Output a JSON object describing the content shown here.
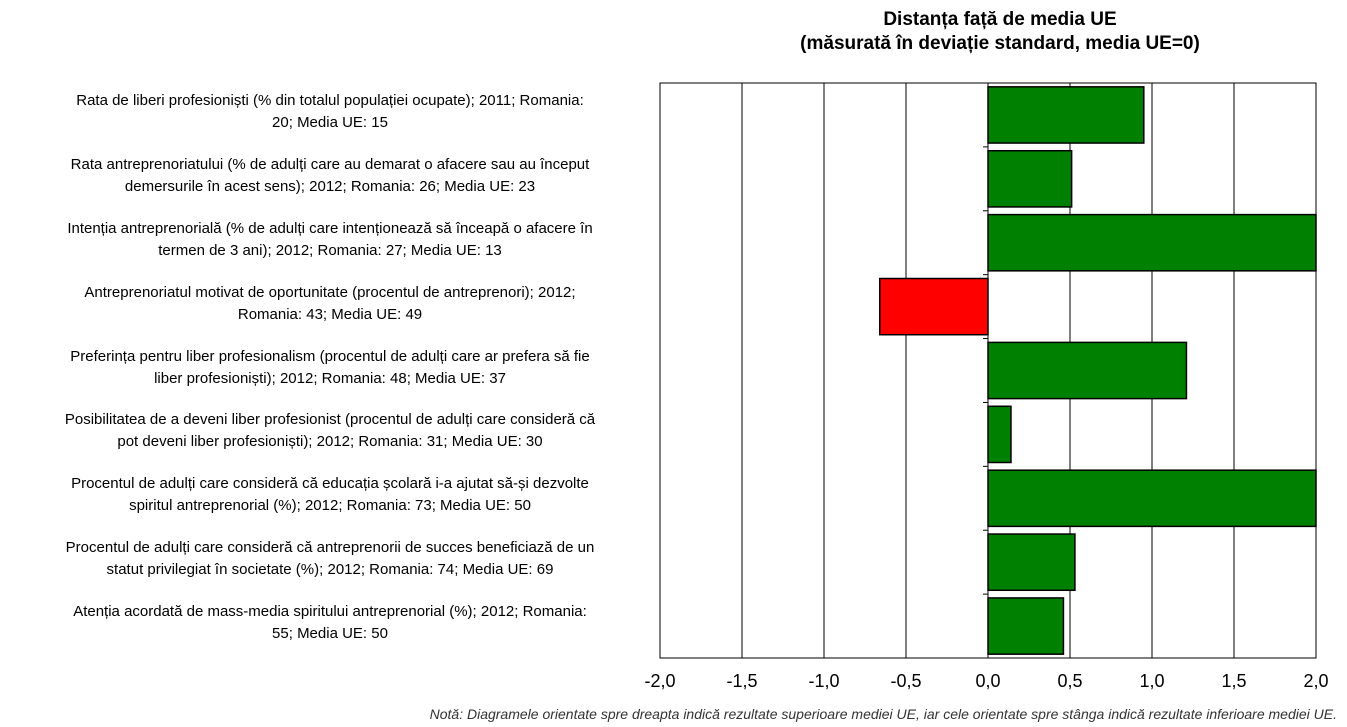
{
  "chart_data": {
    "type": "bar",
    "orientation": "horizontal",
    "title_lines": [
      "Distanța față de media UE",
      "(măsurată în deviație standard, media UE=0)"
    ],
    "categories": [
      [
        "Rata de liberi profesioniști (% din totalul populației ocupate); 2011; Romania:",
        "20; Media UE: 15"
      ],
      [
        "Rata antreprenoriatului (% de adulți care au demarat o afacere sau au început",
        "demersurile în acest sens); 2012; Romania: 26; Media UE: 23"
      ],
      [
        "Intenția antreprenorială (% de adulți care intenționează să înceapă o afacere în",
        "termen de 3 ani); 2012; Romania: 27; Media UE: 13"
      ],
      [
        "Antreprenoriatul motivat de oportunitate (procentul de antreprenori); 2012;",
        "Romania: 43; Media UE: 49"
      ],
      [
        "Preferința pentru liber profesionalism  (procentul de adulți care ar prefera să fie",
        "liber profesioniști); 2012; Romania: 48; Media UE: 37"
      ],
      [
        "Posibilitatea de a deveni liber profesionist (procentul de adulți care consideră că",
        "pot deveni liber profesioniști); 2012; Romania: 31; Media UE: 30"
      ],
      [
        "Procentul de adulți care consideră că educația școlară i-a ajutat să-și dezvolte",
        "spiritul antreprenorial (%); 2012; Romania: 73; Media UE: 50"
      ],
      [
        "Procentul de adulți care consideră că antreprenorii de succes beneficiază de un",
        "statut privilegiat în societate (%); 2012; Romania: 74; Media UE: 69"
      ],
      [
        "Atenția acordată de mass-media spiritului antreprenorial (%); 2012; Romania:",
        "55; Media UE: 50"
      ]
    ],
    "values": [
      0.95,
      0.51,
      2.0,
      -0.66,
      1.21,
      0.14,
      2.0,
      0.53,
      0.46
    ],
    "xlim": [
      -2.0,
      2.0
    ],
    "x_ticks": [
      -2.0,
      -1.5,
      -1.0,
      -0.5,
      0.0,
      0.5,
      1.0,
      1.5,
      2.0
    ],
    "x_tick_labels": [
      "-2,0",
      "-1,5",
      "-1,0",
      "-0,5",
      "0,0",
      "0,5",
      "1,0",
      "1,5",
      "2,0"
    ],
    "grid": "vertical",
    "colors": {
      "positive": "#008000",
      "negative": "#ff0000",
      "border": "#000000",
      "grid": "#000000"
    },
    "note": "Notă: Diagramele orientate spre dreapta indică rezultate superioare mediei UE, iar cele orientate spre stânga indică rezultate inferioare mediei UE."
  }
}
